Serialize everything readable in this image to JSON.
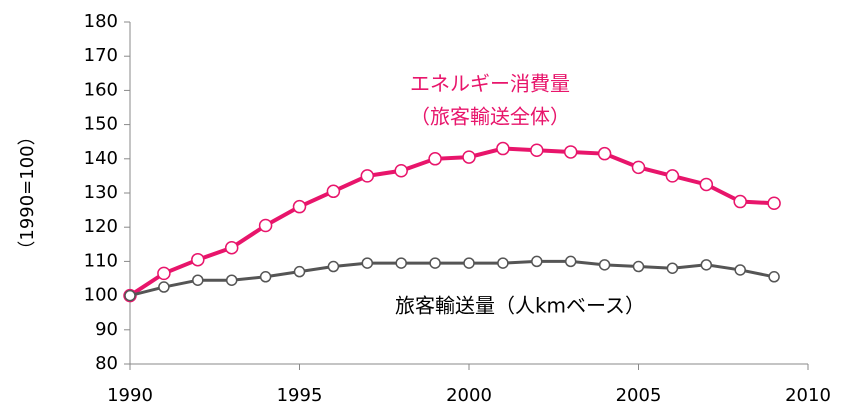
{
  "chart_data": {
    "type": "line",
    "y_label": "（1990=100）",
    "x": [
      1990,
      1991,
      1992,
      1993,
      1994,
      1995,
      1996,
      1997,
      1998,
      1999,
      2000,
      2001,
      2002,
      2003,
      2004,
      2005,
      2006,
      2007,
      2008,
      2009
    ],
    "series": [
      {
        "name": "エネルギー消費量",
        "color": "#e8156b",
        "values": [
          100,
          106.5,
          110.5,
          114,
          120.5,
          126,
          130.5,
          135,
          136.5,
          140,
          140.5,
          143,
          142.5,
          142,
          141.5,
          137.5,
          135,
          132.5,
          127.5,
          127
        ]
      },
      {
        "name": "旅客輸送量（人kmベース）",
        "color": "#555555",
        "values": [
          100,
          102.5,
          104.5,
          104.5,
          105.5,
          107,
          108.5,
          109.5,
          109.5,
          109.5,
          109.5,
          109.5,
          110,
          110,
          109,
          108.5,
          108,
          109,
          107.5,
          105.5
        ]
      }
    ],
    "annotations": [
      {
        "text": "エネルギー消費量",
        "color": "#e8156b"
      },
      {
        "text": "（旅客輸送全体）",
        "color": "#e8156b"
      },
      {
        "text": "旅客輸送量（人kmベース）",
        "color": "#000000"
      }
    ],
    "xlim": [
      1990,
      2010
    ],
    "xticks": [
      1990,
      1995,
      2000,
      2005,
      2010
    ],
    "ylim": [
      80,
      180
    ],
    "yticks": [
      80,
      90,
      100,
      110,
      120,
      130,
      140,
      150,
      160,
      170,
      180
    ],
    "grid": false
  }
}
